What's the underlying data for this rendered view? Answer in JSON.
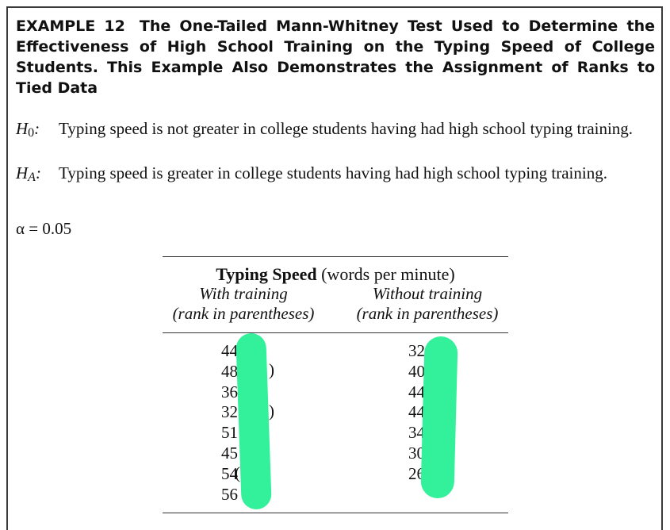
{
  "example": {
    "label": "EXAMPLE 12",
    "title": "The One-Tailed Mann-Whitney Test Used to Determine the Effectiveness of High School Training on the Typing Speed of College Students. This Example Also Demonstrates the Assignment of Ranks to Tied Data"
  },
  "hypotheses": {
    "h0_symbol": "H",
    "h0_subscript": "0",
    "h0_text": "Typing speed is not greater in college students having had high school typing training.",
    "ha_symbol": "H",
    "ha_subscript": "A",
    "ha_text": "Typing speed is greater in college students having had high school typing training.",
    "alpha": "α = 0.05"
  },
  "table": {
    "title_bold": "Typing Speed",
    "title_rest": " (words per minute)",
    "col1_heading_line1": "With training",
    "col1_heading_line2": "(rank in parentheses)",
    "col2_heading_line1": "Without training",
    "col2_heading_line2": "(rank in parentheses)",
    "with_training": [
      "44",
      "48",
      "36",
      "32",
      "51",
      "45",
      "54",
      "56"
    ],
    "without_training": [
      "32",
      "40",
      "44",
      "44",
      "34",
      "30",
      "26"
    ]
  },
  "colors": {
    "highlight_mark": "#33f09a"
  }
}
